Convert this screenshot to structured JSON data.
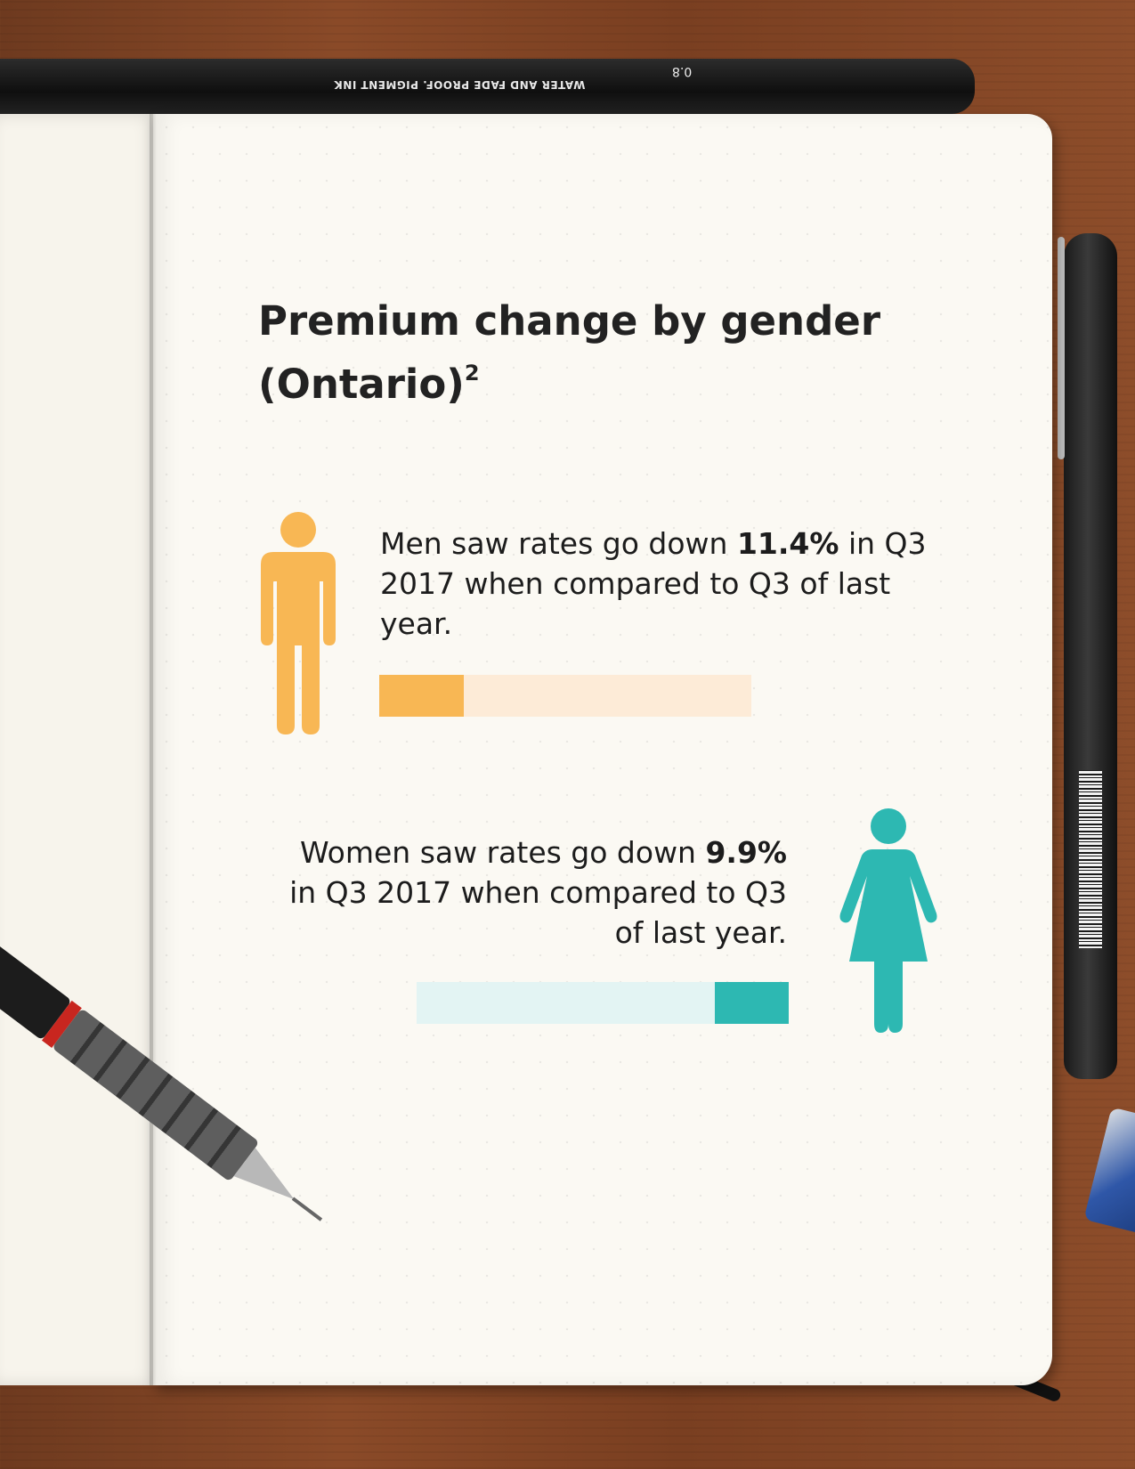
{
  "title": "Premium change by gender (Ontario)",
  "title_footnote": "2",
  "men": {
    "text_before": "Men saw rates go down ",
    "value_text": "11.4%",
    "text_after": " in Q3 2017 when compared to Q3 of last year.",
    "color": "#f8b754",
    "track_color": "#fdebd7",
    "icon": "man-icon"
  },
  "women": {
    "text_before": "Women saw rates go down ",
    "value_text": "9.9%",
    "text_after": " in Q3 2017 when compared to Q3 of last year.",
    "color": "#2db8b2",
    "track_color": "#e3f4f3",
    "icon": "woman-icon"
  },
  "props": {
    "top_pen_text": "WATER AND FADE PROOF. PIGMENT INK",
    "top_pen_size": "0.8"
  },
  "chart_data": {
    "type": "bar",
    "categories": [
      "Men",
      "Women"
    ],
    "values": [
      11.4,
      9.9
    ],
    "unit": "%",
    "title": "Premium change by gender (Ontario)",
    "xlabel": "",
    "ylabel": "",
    "colors": [
      "#f8b754",
      "#2db8b2"
    ],
    "grid": false
  }
}
